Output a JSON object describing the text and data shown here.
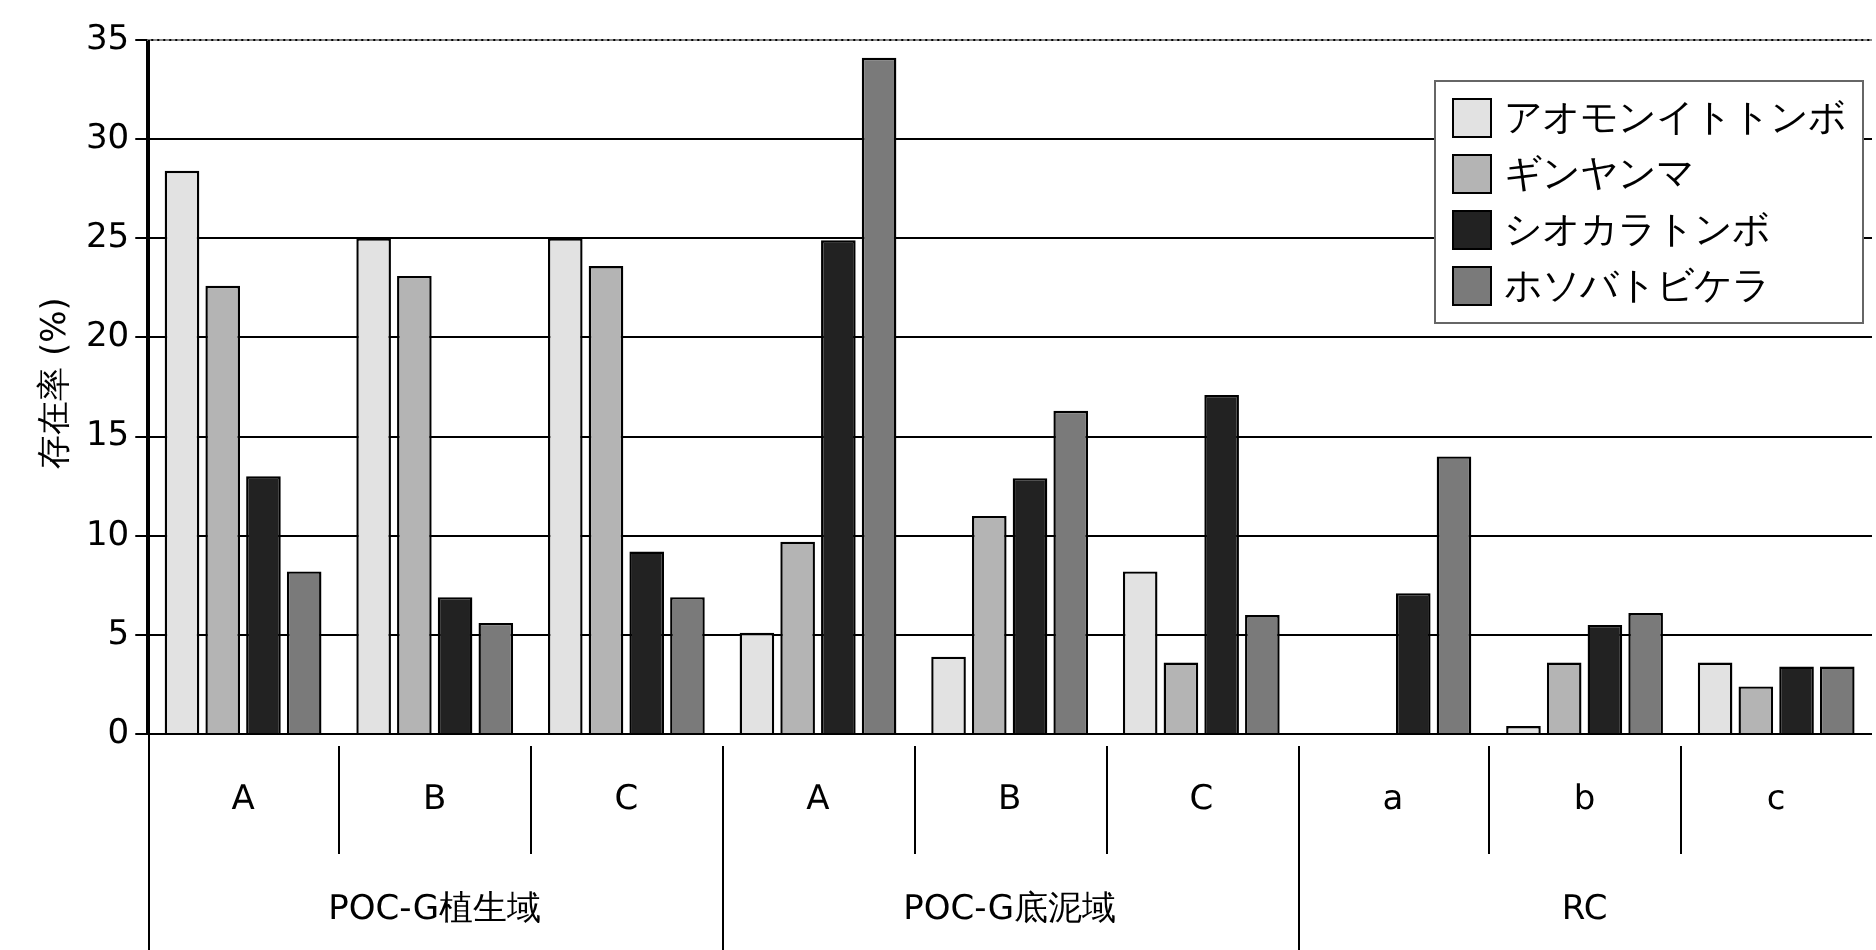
{
  "chart_data": {
    "type": "bar",
    "ylabel": "存在率 (%)",
    "categories": [
      "A",
      "B",
      "C",
      "A",
      "B",
      "C",
      "a",
      "b",
      "c"
    ],
    "annotations": [
      "POC-G植生域",
      "POC-G底泥域",
      "RC"
    ],
    "series": [
      {
        "name": "アオモンイトトンボ",
        "color": "#e2e2e2",
        "values": [
          28.4,
          25,
          25,
          5.1,
          3.9,
          8.2,
          0,
          0.4,
          3.6
        ]
      },
      {
        "name": "ギンヤンマ",
        "color": "#b4b4b4",
        "values": [
          22.6,
          23.1,
          23.6,
          9.7,
          11,
          3.6,
          0,
          3.6,
          2.4
        ]
      },
      {
        "name": "シオカラトンボ",
        "color": "#222222",
        "values": [
          13,
          6.9,
          9.2,
          24.9,
          12.9,
          17.1,
          7.1,
          5.5,
          3.4
        ]
      },
      {
        "name": "ホソバトビケラ",
        "color": "#7a7a7a",
        "values": [
          8.2,
          5.6,
          6.9,
          34.1,
          16.3,
          6,
          14,
          6.1,
          3.4
        ]
      }
    ],
    "ylim": [
      0,
      35
    ],
    "yticks": [
      0,
      5,
      10,
      15,
      20,
      25,
      30,
      35
    ],
    "grid": "y",
    "legend": "top right"
  }
}
